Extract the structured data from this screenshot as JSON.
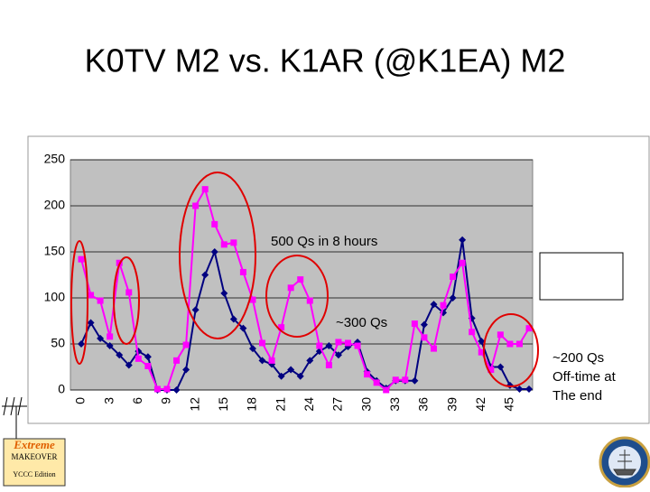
{
  "chart_data": {
    "type": "line",
    "title": "K0TV M2 vs. K1AR (@K1EA) M2",
    "categories": [
      "0",
      null,
      null,
      "3",
      null,
      null,
      "6",
      null,
      null,
      "9",
      null,
      null,
      "12",
      null,
      null,
      "15",
      null,
      null,
      "18",
      null,
      null,
      "21",
      null,
      null,
      "24",
      null,
      null,
      "27",
      null,
      null,
      "30",
      null,
      null,
      "33",
      null,
      null,
      "36",
      null,
      null,
      "39",
      null,
      null,
      "42",
      null,
      null,
      "45",
      null,
      null
    ],
    "series": [
      {
        "name": "K0TV",
        "color": "#000080",
        "values": [
          50,
          73,
          56,
          48,
          38,
          27,
          42,
          36,
          0,
          0,
          0,
          22,
          87,
          125,
          150,
          105,
          77,
          67,
          45,
          32,
          28,
          15,
          22,
          15,
          32,
          42,
          48,
          38,
          47,
          52,
          20,
          10,
          2,
          10,
          10,
          10,
          71,
          93,
          84,
          100,
          163,
          78,
          53,
          25,
          25,
          5,
          1,
          1
        ]
      },
      {
        "name": "K1AR",
        "color": "#ff00ff",
        "values": [
          142,
          103,
          97,
          58,
          138,
          106,
          34,
          26,
          1,
          1,
          32,
          49,
          200,
          218,
          180,
          158,
          160,
          128,
          98,
          51,
          32,
          68,
          111,
          120,
          97,
          48,
          27,
          52,
          51,
          48,
          17,
          8,
          0,
          11,
          11,
          72,
          57,
          45,
          92,
          123,
          138,
          63,
          41,
          22,
          60,
          50,
          50,
          67
        ]
      }
    ],
    "ylim": [
      0,
      250
    ],
    "yticks": [
      0,
      50,
      100,
      150,
      200,
      250
    ],
    "grid": true,
    "legend": "right",
    "annotations": [
      "500 Qs in 8 hours",
      "~300 Qs",
      "~200 Qs",
      "Off-time at",
      "The end"
    ],
    "logo": {
      "title": "Extreme",
      "line1": "MAKEOVER",
      "line2": "YCCC Edition"
    }
  }
}
